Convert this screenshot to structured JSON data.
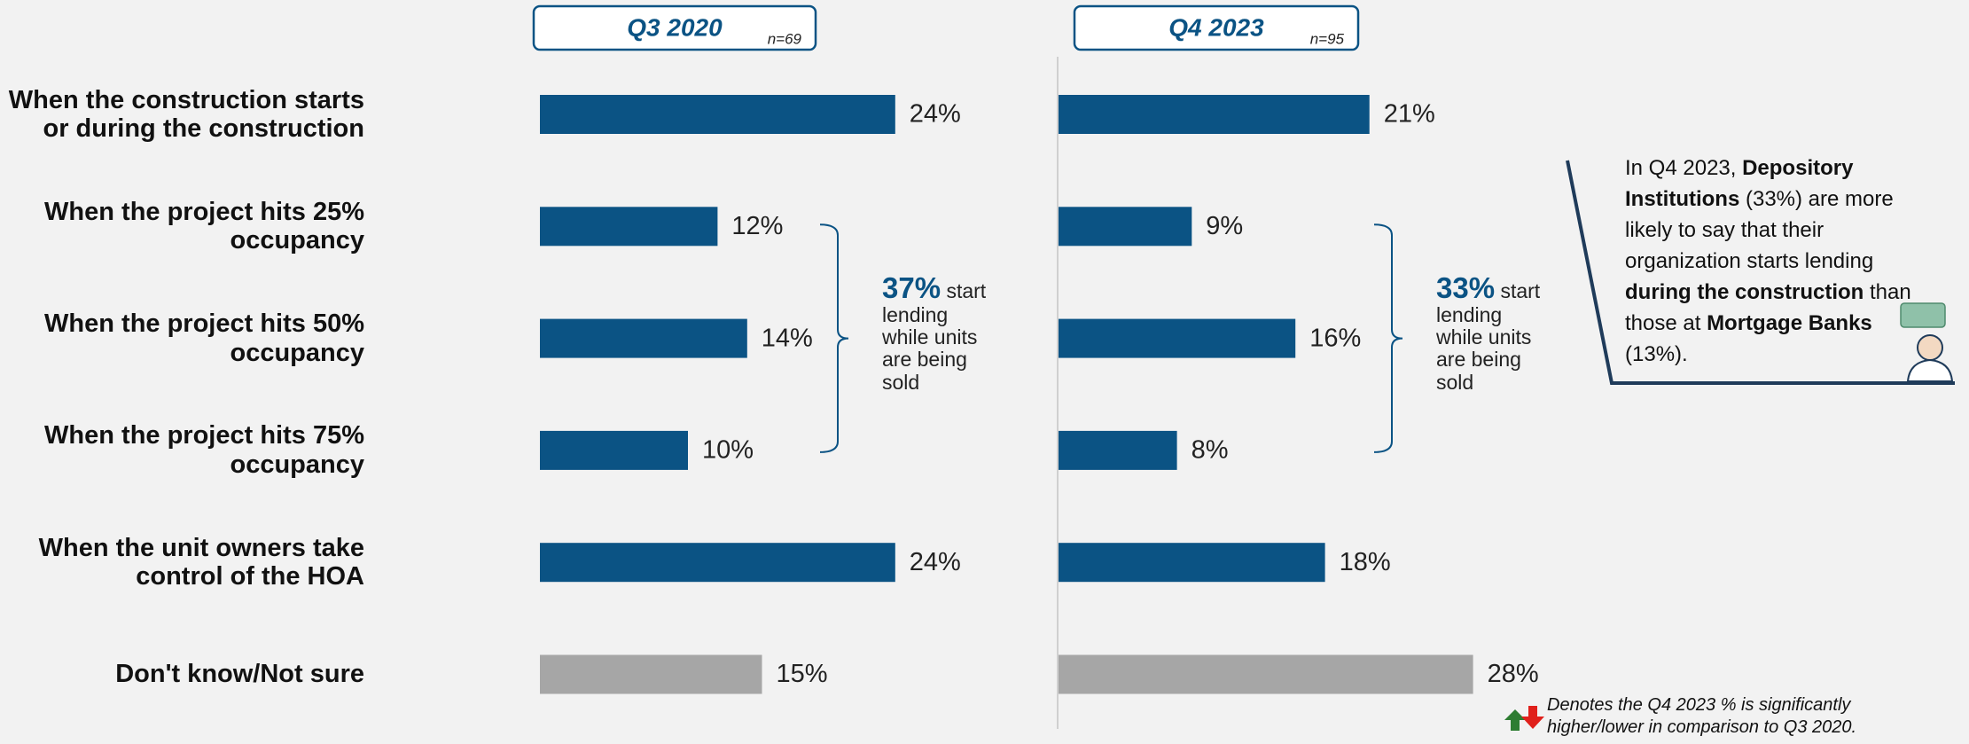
{
  "chart_data": {
    "type": "bar",
    "orientation": "horizontal",
    "categories": [
      "When the construction starts or during the construction",
      "When the project hits 25% occupancy",
      "When the project hits 50% occupancy",
      "When the project hits 75% occupancy",
      "When the unit owners take control of the HOA",
      "Don't know/Not sure"
    ],
    "series": [
      {
        "name": "Q3 2020",
        "note": "n=69",
        "values": [
          24,
          12,
          14,
          10,
          24,
          15
        ],
        "value_labels": [
          "24%",
          "12%",
          "14%",
          "10%",
          "24%",
          "15%"
        ],
        "colors": [
          "#0b5384",
          "#0b5384",
          "#0b5384",
          "#0b5384",
          "#0b5384",
          "#a6a6a6"
        ],
        "bracket": {
          "value": 37,
          "label": "37%",
          "text": "start lending while units are being sold"
        }
      },
      {
        "name": "Q4 2023",
        "note": "n=95",
        "values": [
          21,
          9,
          16,
          8,
          18,
          28
        ],
        "value_labels": [
          "21%",
          "9%",
          "16%",
          "8%",
          "18%",
          "28%"
        ],
        "colors": [
          "#0b5384",
          "#0b5384",
          "#0b5384",
          "#0b5384",
          "#0b5384",
          "#a6a6a6"
        ],
        "bracket": {
          "value": 33,
          "label": "33%",
          "text": "start lending while units are being sold"
        }
      }
    ],
    "callout": [
      {
        "text": "In Q4 2023, "
      },
      {
        "text": "Depository Institutions",
        "bold": true
      },
      {
        "text": " (33%) are more likely to say that their organization starts lending "
      },
      {
        "text": "during the construction",
        "bold": true
      },
      {
        "text": " than those at "
      },
      {
        "text": "Mortgage Banks",
        "bold": true
      },
      {
        "text": " (13%)."
      }
    ],
    "footnote": "Denotes the Q4 2023 % is significantly higher/lower in comparison to Q3 2020.",
    "significance_colors": {
      "higher": "#2e7d32",
      "lower": "#e0201b"
    }
  }
}
